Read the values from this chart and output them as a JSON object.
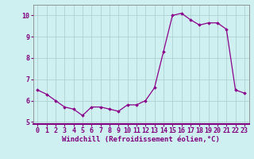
{
  "x": [
    0,
    1,
    2,
    3,
    4,
    5,
    6,
    7,
    8,
    9,
    10,
    11,
    12,
    13,
    14,
    15,
    16,
    17,
    18,
    19,
    20,
    21,
    22,
    23
  ],
  "y": [
    6.5,
    6.3,
    6.0,
    5.7,
    5.6,
    5.3,
    5.7,
    5.7,
    5.6,
    5.5,
    5.8,
    5.8,
    6.0,
    6.6,
    8.3,
    10.0,
    10.1,
    9.8,
    9.55,
    9.65,
    9.65,
    9.35,
    6.5,
    6.35
  ],
  "line_color": "#8B008B",
  "marker": "D",
  "marker_size": 1.8,
  "line_width": 0.9,
  "bg_color": "#cff0f0",
  "grid_color": "#aacccc",
  "xlabel": "Windchill (Refroidissement éolien,°C)",
  "xlabel_fontsize": 6.5,
  "xlabel_color": "#800080",
  "tick_color": "#800080",
  "tick_fontsize": 6.0,
  "ylim": [
    4.9,
    10.5
  ],
  "yticks": [
    5,
    6,
    7,
    8,
    9,
    10
  ],
  "xlim": [
    -0.5,
    23.5
  ],
  "xticks": [
    0,
    1,
    2,
    3,
    4,
    5,
    6,
    7,
    8,
    9,
    10,
    11,
    12,
    13,
    14,
    15,
    16,
    17,
    18,
    19,
    20,
    21,
    22,
    23
  ],
  "axis_line_color": "#800080",
  "spine_color": "#888888"
}
